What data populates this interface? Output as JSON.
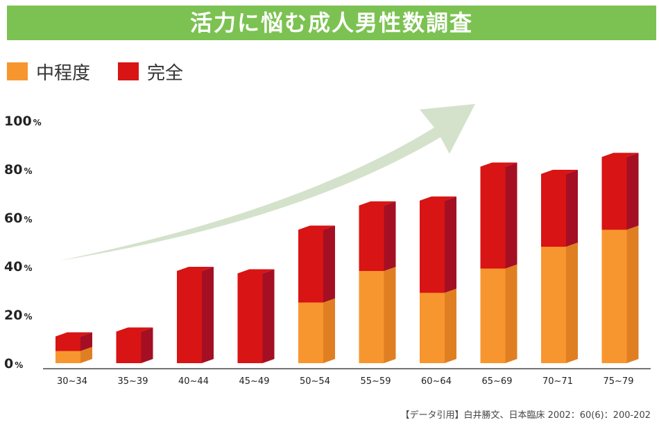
{
  "title": "活力に悩む成人男性数調査",
  "legend": {
    "moderate": "中程度",
    "complete": "完全"
  },
  "colors": {
    "banner": "#7cc252",
    "moderate_front": "#f7962f",
    "moderate_side": "#e07f22",
    "complete_front": "#d81414",
    "complete_side": "#a50f23",
    "arrow": "#d4e2cc"
  },
  "source": "【データ引用】白井勝文、日本臨床 2002：60(6)：200-202",
  "chart_data": {
    "type": "bar",
    "stacked": true,
    "title": "活力に悩む成人男性数調査",
    "categories": [
      "30~34",
      "35~39",
      "40~44",
      "45~49",
      "50~54",
      "55~59",
      "60~64",
      "65~69",
      "70~71",
      "75~79"
    ],
    "series": [
      {
        "name": "中程度",
        "values": [
          5,
          0,
          0,
          0,
          25,
          38,
          29,
          39,
          48,
          55
        ]
      },
      {
        "name": "完全",
        "values": [
          6,
          13,
          38,
          37,
          30,
          27,
          38,
          42,
          30,
          30
        ]
      }
    ],
    "yticks": [
      {
        "value": 100,
        "label": "100"
      },
      {
        "value": 80,
        "label": "80"
      },
      {
        "value": 60,
        "label": "60"
      },
      {
        "value": 40,
        "label": "40"
      },
      {
        "value": 20,
        "label": "20"
      },
      {
        "value": 0,
        "label": "0"
      }
    ],
    "yunit": "%",
    "ylim": [
      0,
      100
    ],
    "grid": false,
    "legend_position": "top-left"
  }
}
